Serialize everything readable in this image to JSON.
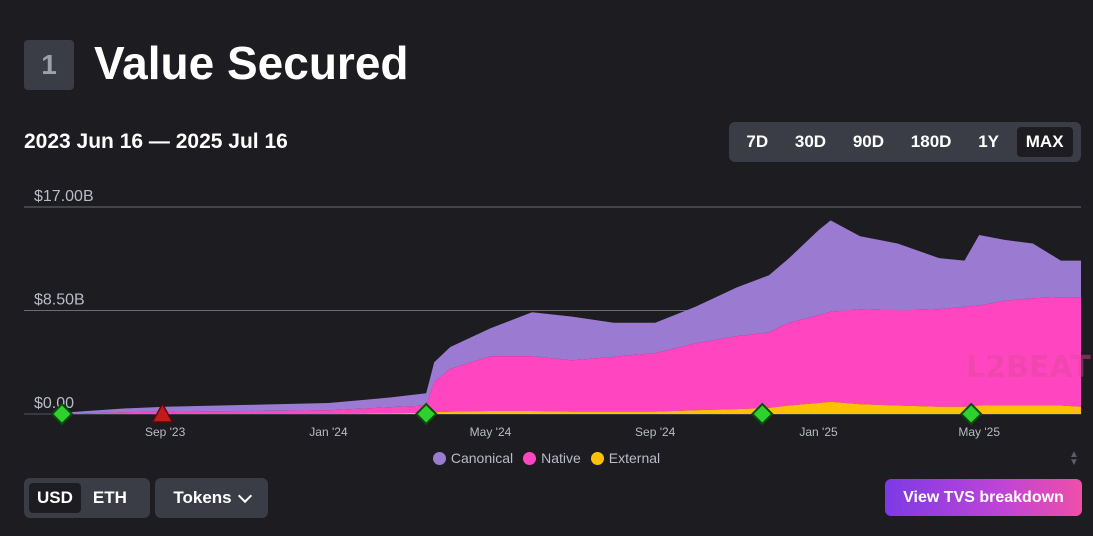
{
  "header": {
    "section_number": "1",
    "title": "Value Secured"
  },
  "date_range": "2023 Jun 16 — 2025 Jul 16",
  "time_ranges": [
    {
      "label": "7D",
      "active": false
    },
    {
      "label": "30D",
      "active": false
    },
    {
      "label": "90D",
      "active": false
    },
    {
      "label": "180D",
      "active": false
    },
    {
      "label": "1Y",
      "active": false
    },
    {
      "label": "MAX",
      "active": true
    }
  ],
  "units": {
    "usd": "USD",
    "eth": "ETH",
    "active": "USD"
  },
  "tokens_label": "Tokens",
  "breakdown_button": "View TVS breakdown",
  "watermark": "L2BEAT",
  "colors": {
    "background": "#1c1c21",
    "canonical": "#9b7ad1",
    "native": "#ff46c0",
    "external": "#ffc107",
    "milestone_good": "#2ed12e",
    "milestone_bad": "#c01c1c"
  },
  "chart_data": {
    "type": "area",
    "stacked": true,
    "y_tick_labels": [
      "$0.00",
      "$8.50B",
      "$17.00B"
    ],
    "ylim": [
      0,
      17
    ],
    "xlim": [
      "2023-06-16",
      "2025-07-16"
    ],
    "x_tick_labels": [
      {
        "label": "Sep '23",
        "date": "2023-09-01"
      },
      {
        "label": "Jan '24",
        "date": "2024-01-01"
      },
      {
        "label": "May '24",
        "date": "2024-05-01"
      },
      {
        "label": "Sep '24",
        "date": "2024-09-01"
      },
      {
        "label": "Jan '25",
        "date": "2025-01-01"
      },
      {
        "label": "May '25",
        "date": "2025-05-01"
      }
    ],
    "x": [
      "2023-06-16",
      "2023-08-01",
      "2023-09-01",
      "2023-11-01",
      "2024-01-01",
      "2024-02-15",
      "2024-03-14",
      "2024-03-20",
      "2024-04-01",
      "2024-05-01",
      "2024-06-01",
      "2024-07-01",
      "2024-08-01",
      "2024-09-01",
      "2024-10-01",
      "2024-11-01",
      "2024-11-25",
      "2024-12-10",
      "2025-01-01",
      "2025-01-10",
      "2025-02-01",
      "2025-03-01",
      "2025-04-01",
      "2025-04-20",
      "2025-05-01",
      "2025-05-20",
      "2025-06-10",
      "2025-07-01",
      "2025-07-16"
    ],
    "series": [
      {
        "name": "Canonical",
        "values": [
          0.1,
          0.3,
          0.4,
          0.5,
          0.6,
          0.8,
          1.0,
          1.6,
          1.8,
          2.3,
          3.6,
          3.6,
          2.8,
          2.5,
          3.0,
          4.0,
          4.7,
          5.3,
          7.0,
          7.5,
          6.0,
          5.5,
          4.2,
          3.8,
          5.8,
          5.0,
          4.5,
          3.0,
          3.0
        ]
      },
      {
        "name": "Native",
        "values": [
          0.0,
          0.15,
          0.2,
          0.25,
          0.3,
          0.5,
          0.6,
          2.5,
          3.5,
          4.5,
          4.5,
          4.2,
          4.5,
          4.8,
          5.5,
          6.0,
          6.2,
          6.8,
          7.2,
          7.4,
          7.8,
          7.8,
          8.0,
          8.2,
          8.2,
          8.6,
          8.8,
          8.9,
          9.0
        ]
      },
      {
        "name": "External",
        "values": [
          0.0,
          0.0,
          0.0,
          0.0,
          0.0,
          0.05,
          0.1,
          0.15,
          0.2,
          0.25,
          0.25,
          0.2,
          0.2,
          0.2,
          0.3,
          0.4,
          0.5,
          0.7,
          0.9,
          1.0,
          0.8,
          0.7,
          0.6,
          0.6,
          0.7,
          0.7,
          0.7,
          0.7,
          0.6
        ]
      }
    ],
    "milestones": [
      {
        "date": "2023-06-16",
        "kind": "good"
      },
      {
        "date": "2023-08-30",
        "kind": "incident"
      },
      {
        "date": "2024-03-14",
        "kind": "good"
      },
      {
        "date": "2024-11-20",
        "kind": "good"
      },
      {
        "date": "2025-04-25",
        "kind": "good"
      }
    ],
    "legend": [
      "Canonical",
      "Native",
      "External"
    ],
    "legend_position": "bottom-center",
    "grid": true
  }
}
